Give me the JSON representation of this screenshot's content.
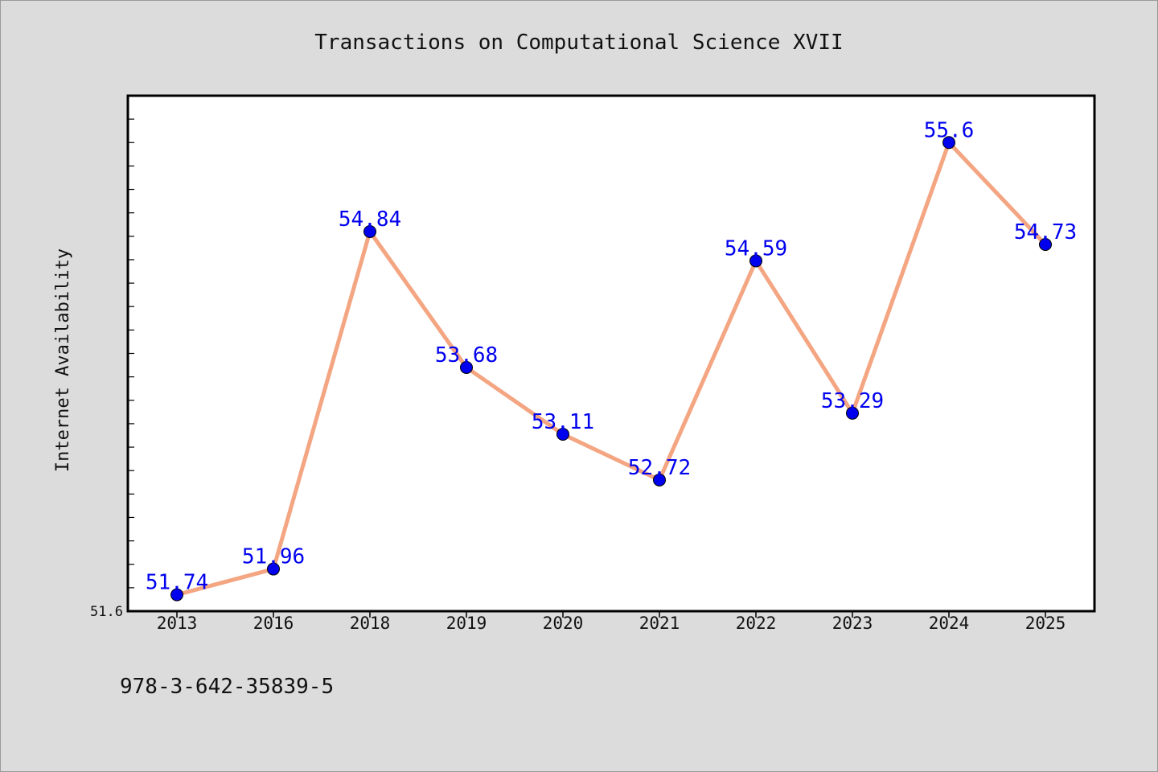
{
  "chart_data": {
    "type": "line",
    "title": "Transactions on Computational Science XVII",
    "ylabel": "Internet Availability",
    "xlabel": "",
    "x": [
      "2013",
      "2016",
      "2018",
      "2019",
      "2020",
      "2021",
      "2022",
      "2023",
      "2024",
      "2025"
    ],
    "series": [
      {
        "values": [
          51.74,
          51.96,
          54.84,
          53.68,
          53.11,
          52.72,
          54.59,
          53.29,
          55.6,
          54.73
        ],
        "labels": [
          "51.74",
          "51.96",
          "54.84",
          "53.68",
          "53.11",
          "52.72",
          "54.59",
          "53.29",
          "55.6",
          "54.73"
        ]
      }
    ],
    "ylim": [
      51.6,
      56.0
    ],
    "y_tick_labels": [
      {
        "value": 51.6,
        "label": "51.6"
      }
    ],
    "grid": false,
    "colors": {
      "line": "#f4a582",
      "marker": "#0000ee",
      "data_label": "#0000ee",
      "plot_background": "#ffffff",
      "figure_background": "#dcdcdc"
    }
  },
  "footer": {
    "isbn": "978-3-642-35839-5"
  }
}
